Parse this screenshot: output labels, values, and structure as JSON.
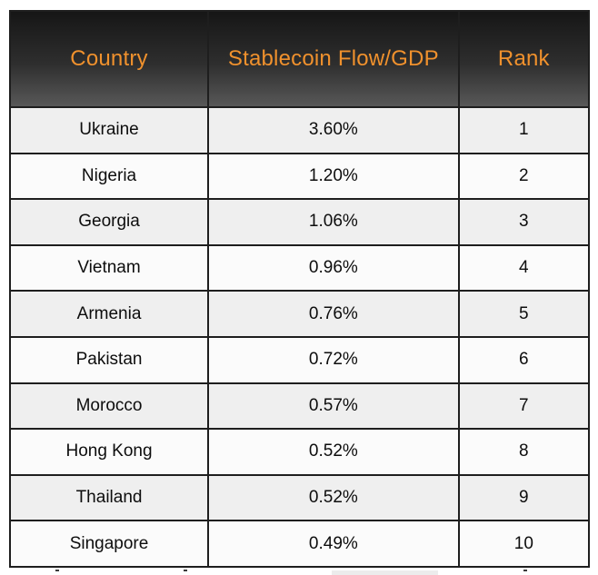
{
  "chart_data": {
    "type": "table",
    "title": "",
    "columns": [
      "Country",
      "Stablecoin Flow/GDP",
      "Rank"
    ],
    "rows": [
      [
        "Ukraine",
        "3.60%",
        "1"
      ],
      [
        "Nigeria",
        "1.20%",
        "2"
      ],
      [
        "Georgia",
        "1.06%",
        "3"
      ],
      [
        "Vietnam",
        "0.96%",
        "4"
      ],
      [
        "Armenia",
        "0.76%",
        "5"
      ],
      [
        "Pakistan",
        "0.72%",
        "6"
      ],
      [
        "Morocco",
        "0.57%",
        "7"
      ],
      [
        "Hong Kong",
        "0.52%",
        "8"
      ],
      [
        "Thailand",
        "0.52%",
        "9"
      ],
      [
        "Singapore",
        "0.49%",
        "10"
      ]
    ],
    "flow_gdp_percent_values": [
      3.6,
      1.2,
      1.06,
      0.96,
      0.76,
      0.72,
      0.57,
      0.52,
      0.52,
      0.49
    ],
    "rank_values": [
      1,
      2,
      3,
      4,
      5,
      6,
      7,
      8,
      9,
      10
    ],
    "layout_hints": {
      "header_style": "dark gradient with orange text",
      "row_striping": "odd rows light gray, even rows near-white",
      "grid": "all cell borders dark"
    }
  },
  "colors": {
    "header_text": "#F0912D",
    "header_gradient_top": "#161616",
    "header_gradient_bottom": "#585858",
    "row_odd_bg": "#EFEFEF",
    "row_even_bg": "#FBFBFB",
    "cell_text": "#0D0D0D",
    "border": "#1E1E1E",
    "page_bg": "#FFFFFF"
  }
}
